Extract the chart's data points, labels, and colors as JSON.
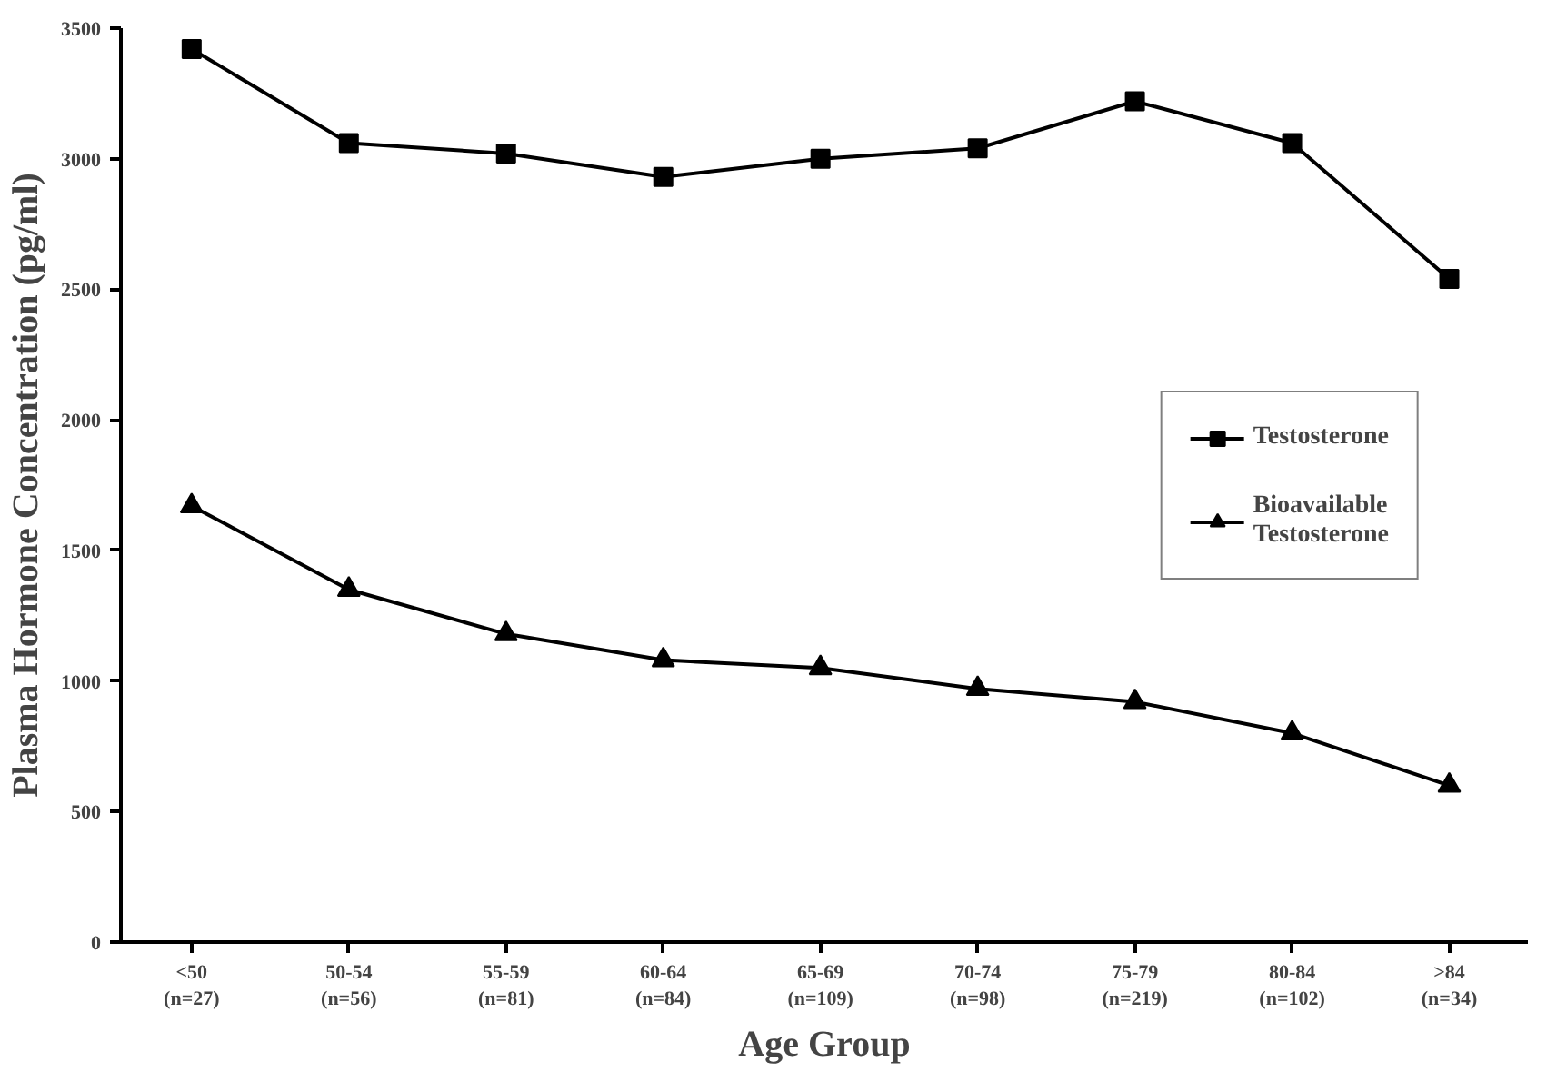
{
  "chart_data": {
    "type": "line",
    "xlabel": "Age Group",
    "ylabel": "Plasma Hormone Concentration (pg/ml)",
    "categories": [
      "<50\n(n=27)",
      "50-54\n(n=56)",
      "55-59\n(n=81)",
      "60-64\n(n=84)",
      "65-69\n(n=109)",
      "70-74\n(n=98)",
      "75-79\n(n=219)",
      "80-84\n(n=102)",
      ">84\n(n=34)"
    ],
    "series": [
      {
        "name": "Testosterone",
        "color": "#000000",
        "marker": "square",
        "values": [
          3420,
          3060,
          3020,
          2930,
          3000,
          3040,
          3220,
          3060,
          2540
        ]
      },
      {
        "name": "Bioavailable\nTestosterone",
        "color": "#000000",
        "marker": "triangle",
        "values": [
          1670,
          1350,
          1180,
          1080,
          1050,
          970,
          920,
          800,
          600
        ]
      }
    ],
    "ylim": [
      0,
      3500
    ],
    "yticks": [
      0,
      500,
      1000,
      1500,
      2000,
      2500,
      3000,
      3500
    ],
    "grid": false,
    "legend": "right",
    "line_style": "solid"
  }
}
